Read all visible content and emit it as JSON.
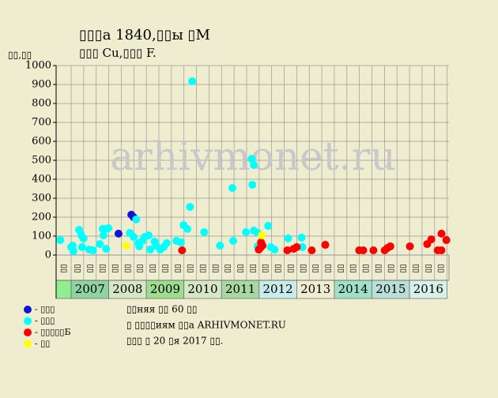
{
  "chart_data": {
    "type": "scatter",
    "title": "▯▯▯а 1840,▯▯ы ▯М",
    "subtitle": "▯▯▯ Cu,▯▯▯ F.",
    "y_label": "▯▯,▯▯",
    "watermark": "arhivmonet.ru",
    "xlim": [
      2006.6,
      2017.05
    ],
    "ylim": [
      0,
      1000
    ],
    "yticks": [
      0,
      100,
      200,
      300,
      400,
      500,
      600,
      700,
      800,
      900,
      1000
    ],
    "first_cell_color": "#90ee90",
    "years": [
      {
        "year": 2007,
        "color": "#8fd3a0"
      },
      {
        "year": 2008,
        "color": "#d7e7c5"
      },
      {
        "year": 2009,
        "color": "#9ddd8f"
      },
      {
        "year": 2010,
        "color": "#d7e7c5"
      },
      {
        "year": 2011,
        "color": "#a8d8a0"
      },
      {
        "year": 2012,
        "color": "#c8ecec"
      },
      {
        "year": 2013,
        "color": "#efedcf"
      },
      {
        "year": 2014,
        "color": "#a0e0c8"
      },
      {
        "year": 2015,
        "color": "#b8e0d8"
      },
      {
        "year": 2016,
        "color": "#d8f0ea"
      }
    ],
    "column_labels": [
      "▯▯",
      "▯▯",
      "▯▯",
      "▯▯",
      "▯▯",
      "▯▯",
      "▯▯",
      "▯▯",
      "▯▯",
      "▯▯",
      "▯▯",
      "▯▯",
      "▯▯",
      "▯▯",
      "▯▯",
      "▯▯",
      "▯▯",
      "▯▯",
      "▯▯",
      "▯▯",
      "▯▯",
      "▯▯",
      "▯▯",
      "▯▯",
      "▯▯",
      "▯▯",
      "▯▯",
      "▯▯",
      "▯▯",
      "▯▯",
      "▯▯"
    ],
    "series": [
      {
        "name": "- ▯▯▯",
        "color": "#1414d8",
        "x": [
          2008.26,
          2008.6,
          2008.66
        ],
        "values": [
          113,
          213,
          200
        ]
      },
      {
        "name": "- ▯▯▯",
        "color": "#00ffff",
        "x": [
          2006.71,
          2007.0,
          2007.06,
          2007.04,
          2007.21,
          2007.27,
          2007.33,
          2007.29,
          2007.48,
          2007.58,
          2007.76,
          2007.84,
          2007.93,
          2007.86,
          2007.99,
          2007.93,
          2008.56,
          2008.66,
          2008.73,
          2008.79,
          2008.81,
          2008.89,
          2008.96,
          2009.06,
          2009.1,
          2009.22,
          2009.26,
          2009.37,
          2009.46,
          2009.54,
          2009.8,
          2009.92,
          2009.99,
          2010.09,
          2010.16,
          2010.22,
          2010.54,
          2010.96,
          2011.29,
          2011.31,
          2011.65,
          2011.8,
          2011.86,
          2011.82,
          2011.86,
          2011.96,
          2011.96,
          2012.24,
          2012.31,
          2012.41,
          2012.77,
          2013.13,
          2013.15
        ],
        "values": [
          79,
          42,
          21,
          50,
          133,
          104,
          88,
          42,
          29,
          25,
          58,
          138,
          138,
          104,
          142,
          33,
          117,
          96,
          188,
          63,
          46,
          75,
          96,
          104,
          29,
          71,
          50,
          29,
          42,
          63,
          75,
          67,
          158,
          138,
          254,
          917,
          121,
          50,
          354,
          75,
          121,
          508,
          475,
          371,
          129,
          117,
          46,
          154,
          42,
          29,
          88,
          92,
          42
        ]
      },
      {
        "name": "- ▯▯▯▯▯Б",
        "color": "#ff0000",
        "x": [
          2009.95,
          2012.03,
          2012.09,
          2012.05,
          2011.99,
          2012.75,
          2012.92,
          2013.0,
          2013.4,
          2013.76,
          2014.66,
          2014.77,
          2015.04,
          2015.34,
          2015.42,
          2015.49,
          2016.01,
          2016.47,
          2016.58,
          2016.75,
          2016.85,
          2016.85,
          2016.98
        ],
        "values": [
          25,
          38,
          50,
          67,
          29,
          25,
          33,
          42,
          25,
          54,
          25,
          25,
          25,
          25,
          38,
          46,
          46,
          58,
          83,
          25,
          25,
          113,
          79
        ]
      },
      {
        "name": "- ▯▯",
        "color": "#ffff00",
        "x": [
          2008.47,
          2012.07
        ],
        "values": [
          50,
          104
        ]
      }
    ],
    "notes": [
      "▯▯няя ▯▯ 60 ▯▯",
      "▯ ▯▯▯▯иям ▯▯а ARHIVMONET.RU",
      "▯▯▯ ▯ 20 ▯я 2017 ▯▯."
    ]
  }
}
